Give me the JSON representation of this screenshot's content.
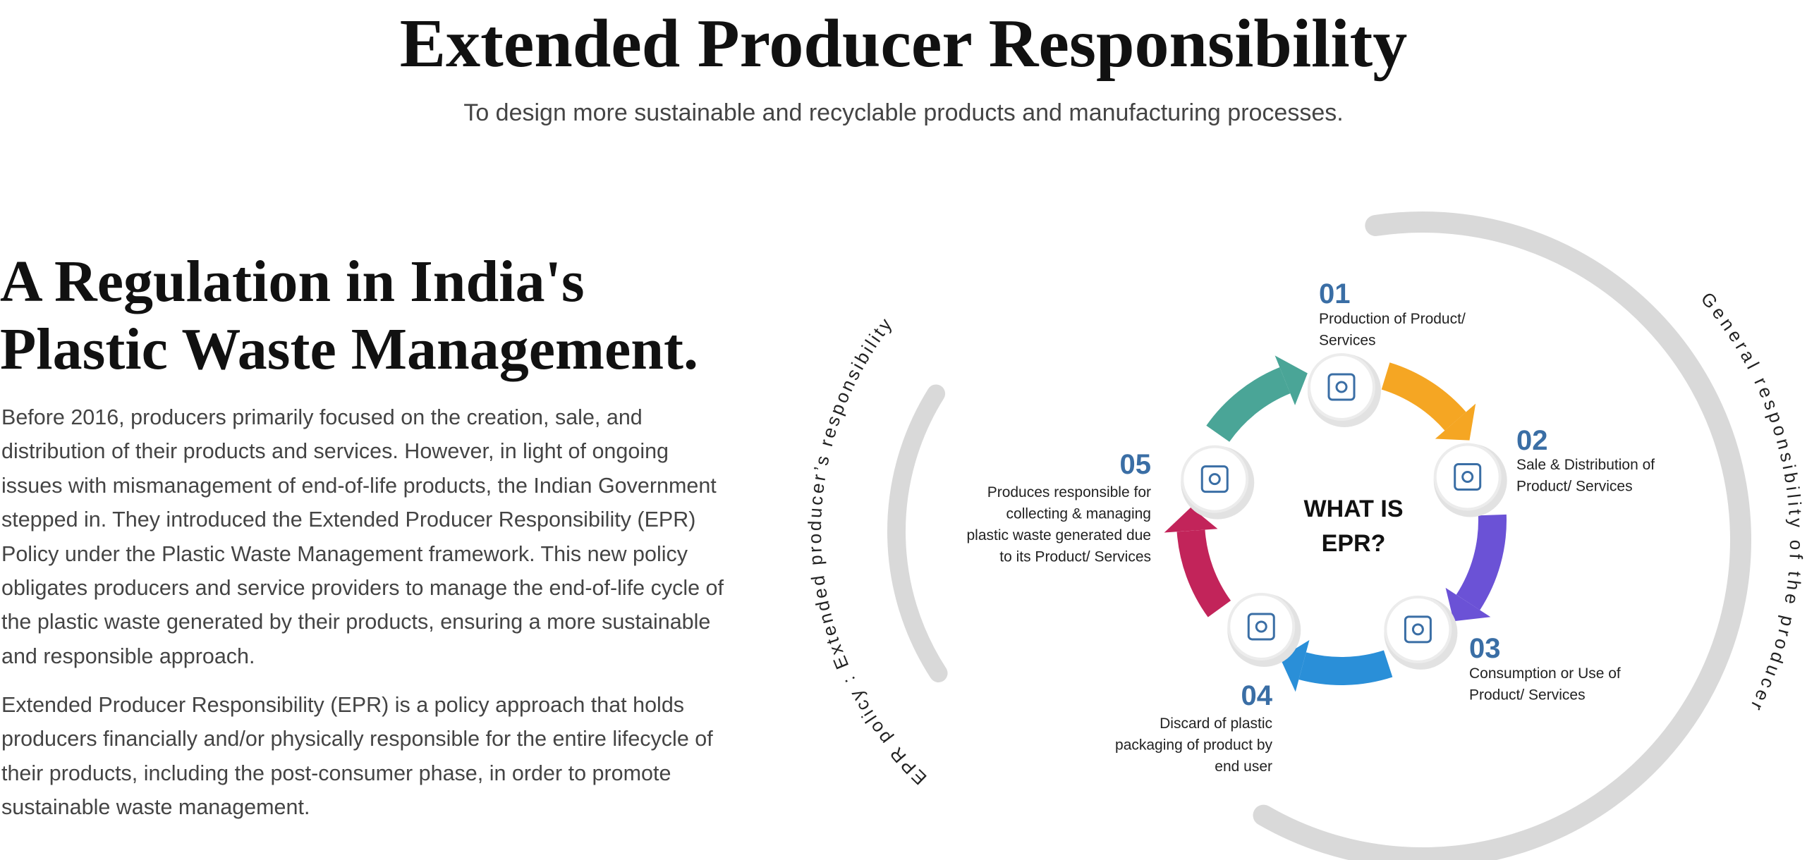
{
  "header": {
    "title": "Extended Producer Responsibility",
    "subtitle": "To design more sustainable and recyclable products and manufacturing processes."
  },
  "intro": {
    "heading": [
      "A Regulation in India's",
      "Plastic Waste Management."
    ],
    "paragraphs": [
      "Before 2016, producers primarily focused on the creation, sale, and distribution of their products and services. However, in light of ongoing issues with mismanagement of end-of-life products, the Indian Government stepped in. They introduced the Extended Producer Responsibility (EPR) Policy under the Plastic Waste Management framework. This new policy obligates producers and service providers to manage the end-of-life cycle of the plastic waste generated by their products, ensuring a more sustainable and responsible approach.",
      "Extended Producer Responsibility (EPR) is a policy approach that holds producers financially and/or physically responsible for the entire lifecycle of their products, including the post-consumer phase, in order to promote sustainable waste management."
    ]
  },
  "diagram": {
    "center": [
      "WHAT IS",
      "EPR?"
    ],
    "left_arc": "EPR policy : Extended producer’s responsibility",
    "right_arc": "General responsibility of the producer",
    "steps": [
      {
        "number": "01",
        "label": [
          "Production of Product/",
          "Services"
        ]
      },
      {
        "number": "02",
        "label": [
          "Sale & Distribution of",
          "Product/ Services"
        ]
      },
      {
        "number": "03",
        "label": [
          "Consumption or Use of",
          "Product/ Services"
        ]
      },
      {
        "number": "04",
        "label": [
          "Discard of plastic",
          "packaging of product by",
          "end user"
        ]
      },
      {
        "number": "05",
        "label": [
          "Produces responsible for",
          "collecting & managing",
          "plastic waste generated due",
          "to its Product/ Services"
        ]
      }
    ]
  }
}
